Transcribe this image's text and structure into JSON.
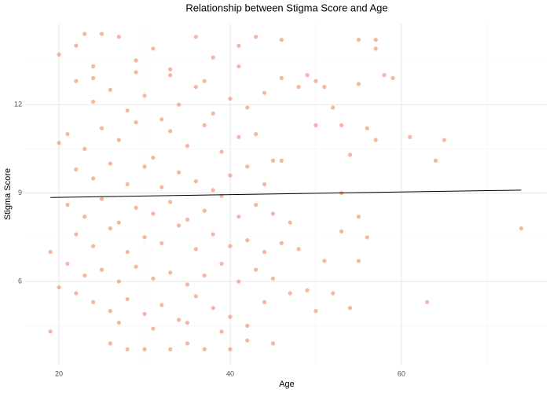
{
  "chart_data": {
    "type": "scatter",
    "title": "Relationship between Stigma Score and Age",
    "x_label": "Age",
    "y_label": "Stigma Score",
    "color": "#f4845f",
    "opacity": 0.6,
    "grid": true,
    "xlim": [
      16.05,
      76.9
    ],
    "ylim": [
      3.15,
      14.75
    ],
    "xticks": [
      20,
      40,
      60
    ],
    "yticks": [
      6,
      9,
      12
    ],
    "xminorticks": [
      30,
      50,
      70
    ],
    "yminorticks": [
      4.5,
      7.5,
      10.5,
      13.5
    ],
    "trend_line": {
      "x": [
        19,
        74
      ],
      "y": [
        8.85,
        9.1
      ],
      "color": "#000000"
    },
    "x": [
      19,
      19,
      20,
      20,
      20,
      55,
      57,
      57,
      58,
      59,
      61,
      64,
      65,
      63,
      74,
      55,
      56,
      55,
      53,
      52,
      50,
      51,
      49,
      47,
      54,
      53,
      54,
      52,
      50,
      53,
      56,
      57,
      50,
      51,
      55,
      46,
      48,
      49,
      46,
      43,
      45,
      42,
      40,
      37,
      30,
      26,
      28,
      33,
      35,
      23,
      25,
      27,
      22,
      24,
      29,
      31,
      33,
      36,
      38,
      41,
      22,
      24,
      26,
      28,
      30,
      32,
      34,
      36,
      38,
      40,
      42,
      44,
      21,
      23,
      25,
      27,
      29,
      31,
      33,
      35,
      37,
      39,
      41,
      43,
      45,
      22,
      24,
      26,
      28,
      30,
      32,
      34,
      36,
      38,
      40,
      42,
      44,
      46,
      21,
      23,
      25,
      27,
      29,
      31,
      33,
      35,
      37,
      39,
      41,
      43,
      45,
      47,
      22,
      24,
      26,
      28,
      30,
      32,
      34,
      36,
      38,
      40,
      42,
      44,
      46,
      48,
      21,
      23,
      25,
      27,
      29,
      31,
      33,
      35,
      37,
      39,
      41,
      43,
      45,
      22,
      24,
      26,
      28,
      30,
      32,
      34,
      36,
      38,
      40,
      42,
      44,
      27,
      31,
      35,
      39,
      33,
      29,
      24,
      37,
      41
    ],
    "values": [
      7.0,
      4.3,
      13.7,
      10.7,
      5.8,
      14.2,
      14.2,
      13.9,
      13.0,
      12.9,
      10.9,
      10.1,
      10.8,
      5.3,
      7.8,
      8.2,
      7.5,
      6.7,
      7.7,
      5.6,
      5.0,
      6.7,
      5.7,
      5.6,
      5.1,
      9.0,
      10.3,
      11.9,
      11.3,
      11.3,
      11.2,
      10.8,
      12.8,
      12.6,
      12.7,
      12.9,
      12.6,
      13.0,
      14.2,
      14.3,
      3.9,
      4.0,
      3.7,
      3.7,
      3.7,
      3.9,
      3.7,
      3.7,
      3.9,
      14.4,
      14.4,
      14.3,
      14.0,
      13.3,
      13.5,
      13.9,
      13.2,
      14.3,
      13.6,
      14.0,
      12.8,
      12.1,
      12.5,
      11.8,
      12.3,
      11.5,
      12.0,
      12.6,
      11.7,
      12.2,
      11.9,
      12.4,
      11.0,
      10.5,
      11.2,
      10.8,
      11.4,
      10.2,
      11.1,
      10.6,
      11.3,
      10.4,
      10.9,
      11.0,
      10.1,
      9.8,
      9.5,
      10.0,
      9.3,
      9.9,
      9.2,
      9.7,
      9.4,
      9.1,
      9.6,
      9.9,
      9.3,
      10.1,
      8.6,
      8.2,
      8.8,
      8.0,
      8.5,
      8.3,
      8.7,
      8.1,
      8.4,
      8.9,
      8.2,
      8.6,
      8.3,
      8.0,
      7.6,
      7.2,
      7.8,
      7.0,
      7.5,
      7.3,
      7.9,
      7.1,
      7.6,
      7.2,
      7.4,
      7.0,
      7.3,
      7.1,
      6.6,
      6.2,
      6.4,
      6.0,
      6.5,
      6.1,
      6.3,
      5.9,
      6.2,
      6.6,
      6.0,
      6.4,
      6.1,
      5.6,
      5.3,
      5.0,
      5.4,
      4.9,
      5.2,
      4.7,
      5.5,
      5.1,
      4.8,
      4.5,
      5.3,
      4.6,
      4.4,
      4.6,
      4.3,
      13.0,
      13.1,
      12.9,
      12.8,
      13.3
    ]
  }
}
